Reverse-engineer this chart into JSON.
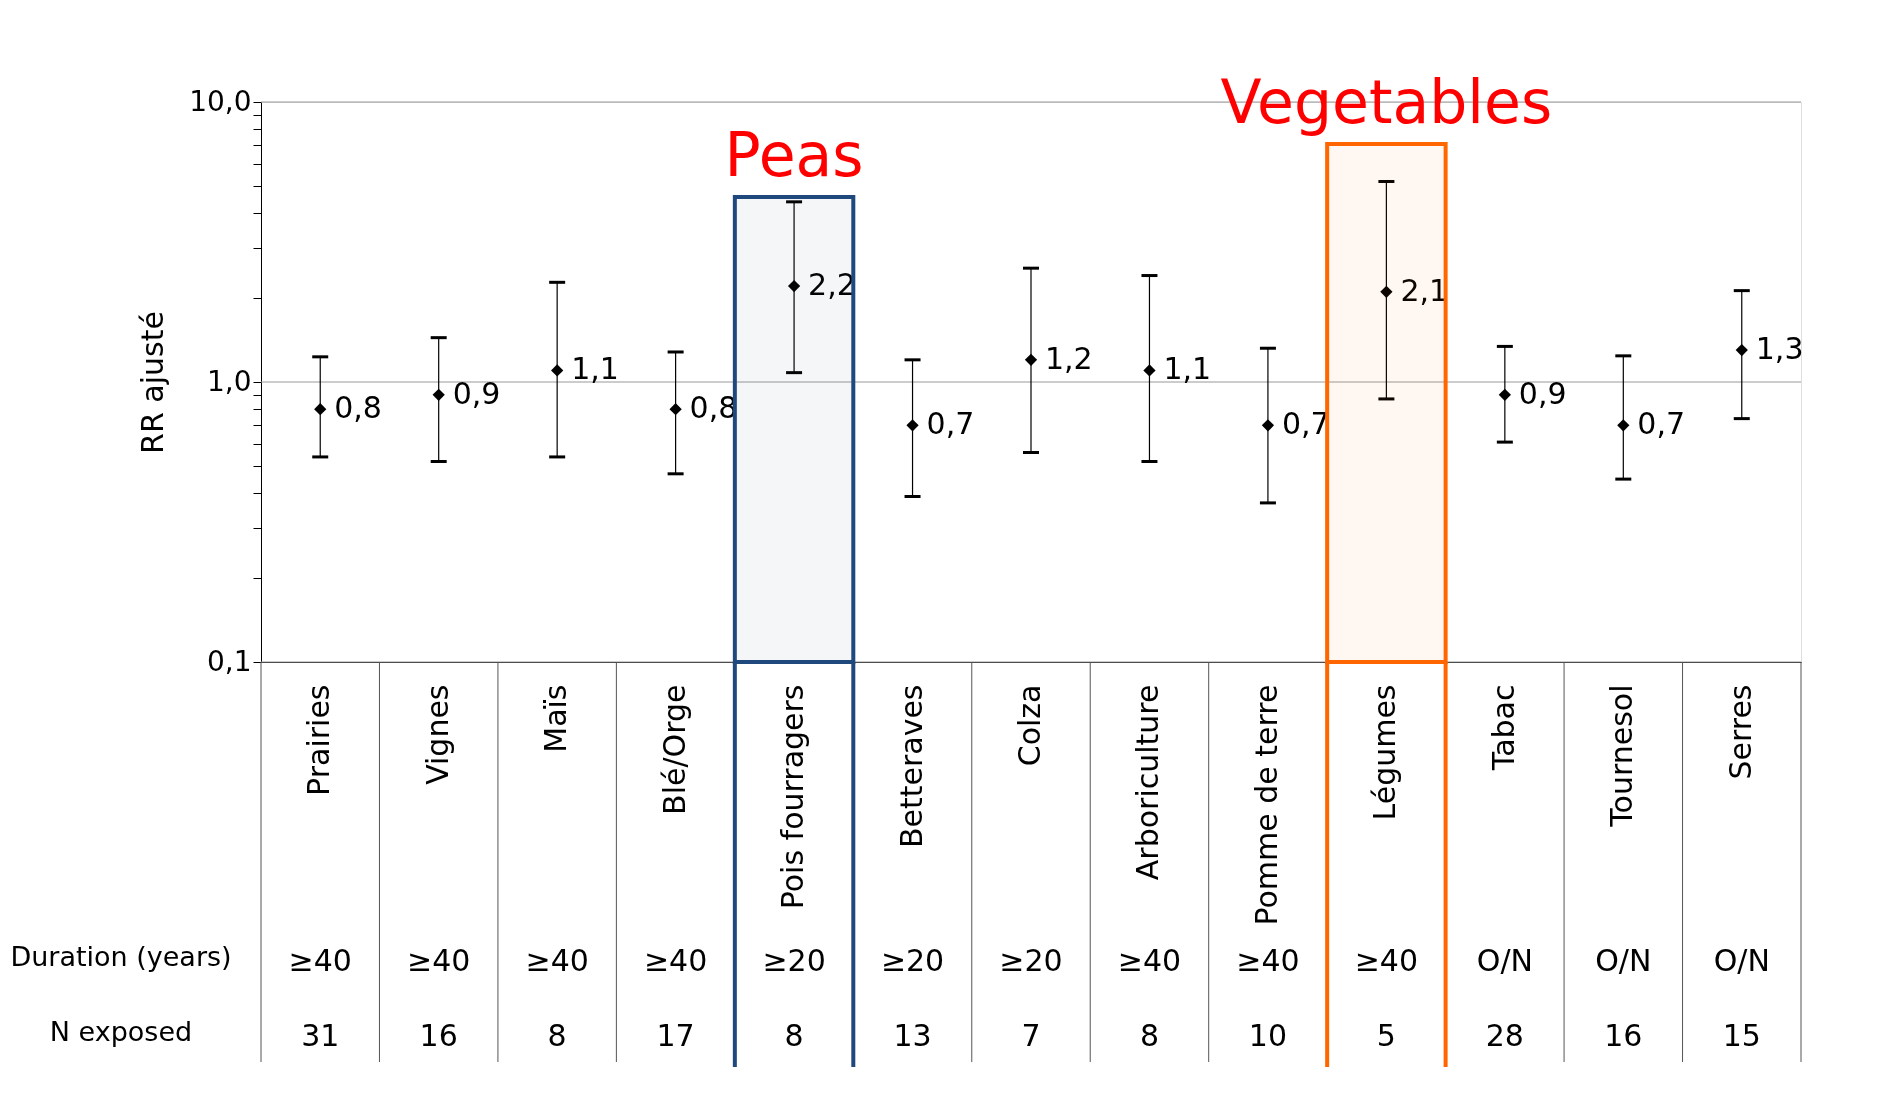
{
  "chart_data": {
    "type": "scatter",
    "ylabel": "RR ajusté",
    "categories": [
      "Prairies",
      "Vignes",
      "Maïs",
      "Blé/Orge",
      "Pois fourragers",
      "Betteraves",
      "Colza",
      "Arboriculture",
      "Pomme de terre",
      "Légumes",
      "Tabac",
      "Tournesol",
      "Serres"
    ],
    "values": [
      0.8,
      0.9,
      1.1,
      0.8,
      2.2,
      0.7,
      1.2,
      1.1,
      0.7,
      2.1,
      0.9,
      0.7,
      1.3
    ],
    "color": "#000000",
    "errors": [
      [
        0.54,
        1.23
      ],
      [
        0.52,
        1.44
      ],
      [
        0.54,
        2.27
      ],
      [
        0.47,
        1.28
      ],
      [
        1.08,
        4.4
      ],
      [
        0.39,
        1.2
      ],
      [
        0.56,
        2.55
      ],
      [
        0.52,
        2.4
      ],
      [
        0.37,
        1.32
      ],
      [
        0.87,
        5.2
      ],
      [
        0.61,
        1.34
      ],
      [
        0.45,
        1.24
      ],
      [
        0.74,
        2.12
      ]
    ],
    "value_labels": [
      "0,8",
      "0,9",
      "1,1",
      "0,8",
      "2,2",
      "0,7",
      "1,2",
      "1,1",
      "0,7",
      "2,1",
      "0,9",
      "0,7",
      "1,3"
    ],
    "marker": "diamond",
    "log": "y",
    "grid": "y",
    "ylim": [
      0.1,
      10
    ],
    "yticks": [
      {
        "value": 0.1,
        "label": "0,1"
      },
      {
        "value": 0.2,
        "label": null
      },
      {
        "value": 0.3,
        "label": null
      },
      {
        "value": 0.4,
        "label": null
      },
      {
        "value": 0.5,
        "label": null
      },
      {
        "value": 0.6,
        "label": null
      },
      {
        "value": 0.7,
        "label": null
      },
      {
        "value": 0.8,
        "label": null
      },
      {
        "value": 0.9,
        "label": null
      },
      {
        "value": 1,
        "label": "1,0"
      },
      {
        "value": 2,
        "label": null
      },
      {
        "value": 3,
        "label": null
      },
      {
        "value": 4,
        "label": null
      },
      {
        "value": 5,
        "label": null
      },
      {
        "value": 6,
        "label": null
      },
      {
        "value": 7,
        "label": null
      },
      {
        "value": 8,
        "label": null
      },
      {
        "value": 9,
        "label": null
      },
      {
        "value": 10,
        "label": "10,0"
      }
    ],
    "bands": [
      {
        "axis": "x",
        "from": "Pois fourragers",
        "to": "Pois fourragers",
        "label": "Peas",
        "color": "#1f497d"
      },
      {
        "axis": "x",
        "from": "Légumes",
        "to": "Légumes",
        "label": "Vegetables",
        "color": "#ff6600"
      }
    ],
    "annotations": [
      "Duration (years)",
      "≥40",
      "≥40",
      "≥40",
      "≥40",
      "≥20",
      "≥20",
      "≥20",
      "≥40",
      "≥40",
      "≥40",
      "O/N",
      "O/N",
      "O/N",
      "N exposed",
      "31",
      "16",
      "8",
      "17",
      "8",
      "13",
      "7",
      "8",
      "10",
      "5",
      "28",
      "16",
      "15"
    ]
  }
}
